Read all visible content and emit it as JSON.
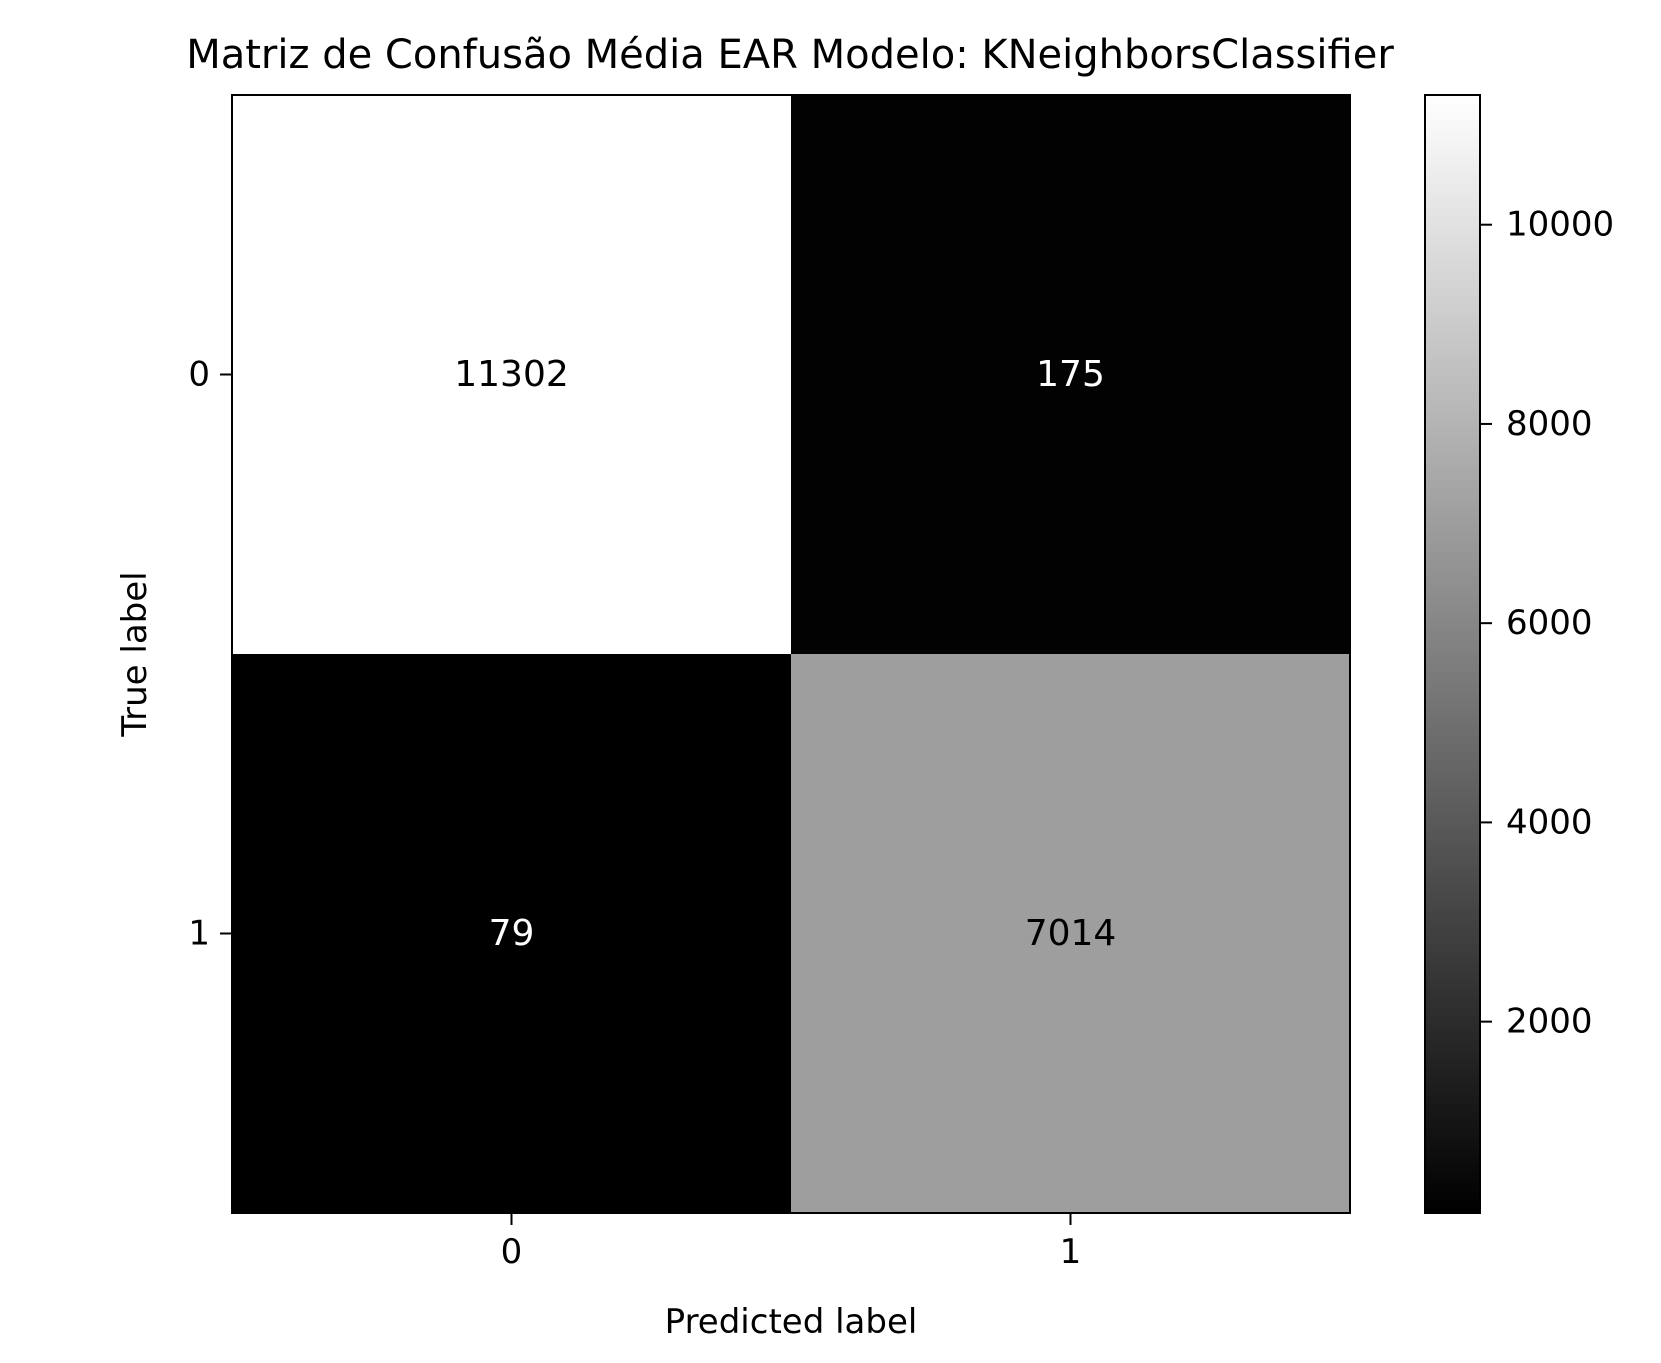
{
  "chart_data": {
    "type": "heatmap",
    "title": "Matriz de Confusão Média EAR Modelo: KNeighborsClassifier",
    "xlabel": "Predicted label",
    "ylabel": "True label",
    "x_categories": [
      "0",
      "1"
    ],
    "y_categories": [
      "0",
      "1"
    ],
    "matrix": [
      [
        11302,
        175
      ],
      [
        79,
        7014
      ]
    ],
    "colormap": "gray",
    "grid": false,
    "colorbar": {
      "position": "right",
      "range": [
        79,
        11302
      ],
      "ticks": [
        2000,
        4000,
        6000,
        8000,
        10000
      ],
      "tick_labels": [
        "2000",
        "4000",
        "6000",
        "8000",
        "10000"
      ]
    }
  }
}
